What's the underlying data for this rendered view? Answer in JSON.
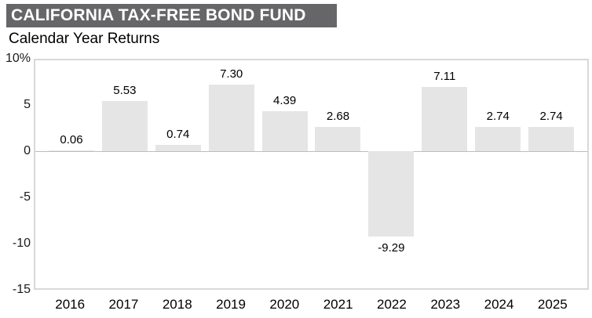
{
  "header": {
    "title": "CALIFORNIA TAX-FREE BOND FUND",
    "subtitle": "Calendar Year Returns"
  },
  "chart_data": {
    "type": "bar",
    "title": "Calendar Year Returns",
    "categories": [
      "2016",
      "2017",
      "2018",
      "2019",
      "2020",
      "2021",
      "2022",
      "2023",
      "2024",
      "2025"
    ],
    "values": [
      0.06,
      5.53,
      0.74,
      7.3,
      4.39,
      2.68,
      -9.29,
      7.11,
      2.74,
      2.74
    ],
    "value_labels": [
      "0.06",
      "5.53",
      "0.74",
      "7.30",
      "4.39",
      "2.68",
      "-9.29",
      "7.11",
      "2.74",
      "2.74"
    ],
    "xlabel": "",
    "ylabel": "",
    "ylim": [
      -15,
      10
    ],
    "y_ticks": [
      10,
      5,
      0,
      -5,
      -10,
      -15
    ],
    "y_tick_labels": [
      "10%",
      "5",
      "0",
      "-5",
      "-10",
      "-15"
    ],
    "grid": false,
    "legend_position": "none",
    "bar_color": "#e5e5e5"
  },
  "colors": {
    "header_bg": "#666669",
    "header_text": "#ffffff",
    "bar_fill": "#e5e5e5",
    "plot_border": "#d8d8d8",
    "zero_line": "#bdbdbd",
    "text": "#000000"
  }
}
